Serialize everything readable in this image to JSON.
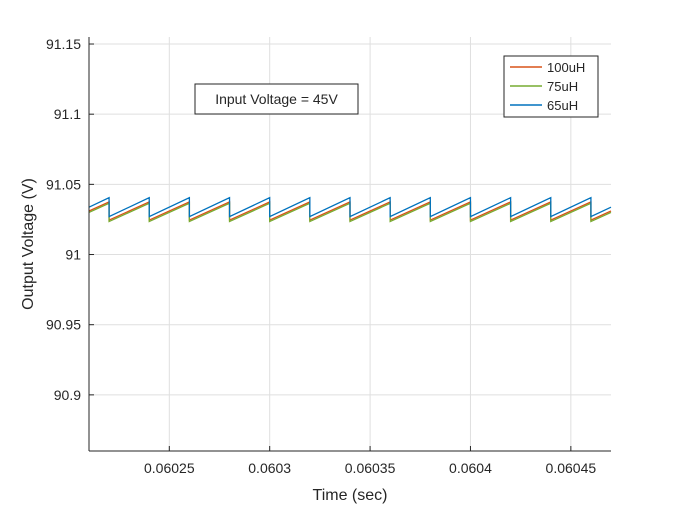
{
  "chart_data": {
    "type": "line",
    "title": "",
    "xlabel": "Time (sec)",
    "ylabel": "Output Voltage (V)",
    "xlim": [
      0.06021,
      0.06047
    ],
    "ylim": [
      90.86,
      91.155
    ],
    "x_ticks": [
      0.06025,
      0.0603,
      0.06035,
      0.0604,
      0.06045
    ],
    "x_tick_labels": [
      "0.06025",
      "0.0603",
      "0.06035",
      "0.0604",
      "0.06045"
    ],
    "y_ticks": [
      90.9,
      90.95,
      91,
      91.05,
      91.1,
      91.15
    ],
    "y_tick_labels": [
      "90.9",
      "90.95",
      "91",
      "91.05",
      "91.1",
      "91.15"
    ],
    "grid": true,
    "legend_position": "top-right",
    "annotation": "Input Voltage = 45V",
    "ripple_period": 2e-05,
    "first_drop": 0.06022,
    "series": [
      {
        "name": "100uH",
        "color": "#D95319",
        "low": 91.0245,
        "high": 91.0375
      },
      {
        "name": "75uH",
        "color": "#77AC30",
        "low": 91.0235,
        "high": 91.0365
      },
      {
        "name": "65uH",
        "color": "#0072BD",
        "low": 91.027,
        "high": 91.0405
      }
    ]
  }
}
